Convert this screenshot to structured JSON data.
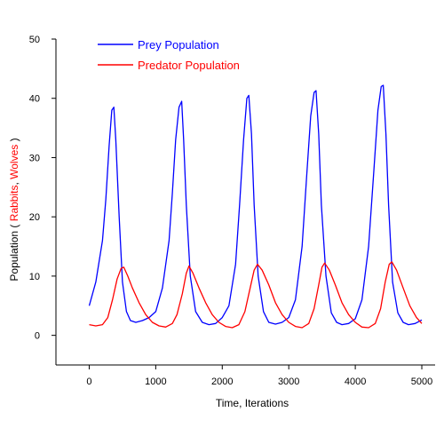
{
  "chart_data": {
    "type": "line",
    "title": "",
    "xlabel": "Time, Iterations",
    "ylabel_parts": [
      {
        "text": "Population ( ",
        "color": "#000000"
      },
      {
        "text": "Rabbits",
        "color": "#ff0000"
      },
      {
        "text": ", ",
        "color": "#000000"
      },
      {
        "text": "Wolves",
        "color": "#ff0000"
      },
      {
        "text": " )",
        "color": "#000000"
      }
    ],
    "xlim": [
      -500,
      5200
    ],
    "ylim": [
      -5,
      50
    ],
    "xticks": [
      0,
      1000,
      2000,
      3000,
      4000,
      5000
    ],
    "yticks": [
      0,
      10,
      20,
      30,
      40,
      50
    ],
    "grid": false,
    "legend_position": "top-left",
    "series": [
      {
        "name": "Prey Population",
        "color": "#0000ff",
        "x": [
          0,
          100,
          200,
          250,
          300,
          340,
          370,
          400,
          450,
          500,
          560,
          620,
          700,
          800,
          900,
          1000,
          1100,
          1200,
          1250,
          1300,
          1350,
          1390,
          1420,
          1460,
          1520,
          1600,
          1700,
          1800,
          1900,
          2000,
          2100,
          2200,
          2260,
          2320,
          2370,
          2400,
          2440,
          2480,
          2540,
          2620,
          2700,
          2800,
          2900,
          3000,
          3100,
          3200,
          3270,
          3330,
          3380,
          3410,
          3450,
          3490,
          3560,
          3640,
          3720,
          3800,
          3900,
          4000,
          4100,
          4200,
          4280,
          4340,
          4390,
          4420,
          4460,
          4500,
          4560,
          4640,
          4720,
          4800,
          4900,
          5000
        ],
        "values": [
          5,
          9,
          16,
          23,
          32,
          38,
          38.5,
          33,
          20,
          9,
          4,
          2.5,
          2.2,
          2.5,
          3,
          4,
          8,
          16,
          24,
          33,
          38.5,
          39.5,
          33,
          22,
          10,
          4,
          2.2,
          1.8,
          2,
          3,
          5,
          12,
          22,
          33,
          40,
          40.5,
          34,
          22,
          10,
          4,
          2.2,
          1.9,
          2.2,
          3,
          6,
          15,
          27,
          37,
          41,
          41.3,
          34,
          22,
          10,
          3.8,
          2.2,
          1.8,
          2,
          2.8,
          6,
          15,
          28,
          38,
          42,
          42.2,
          34,
          22,
          9,
          3.8,
          2.2,
          1.8,
          2,
          2.6
        ]
      },
      {
        "name": "Predator Population",
        "color": "#ff0000",
        "x": [
          0,
          100,
          200,
          280,
          350,
          420,
          480,
          520,
          580,
          650,
          750,
          850,
          950,
          1050,
          1150,
          1250,
          1320,
          1400,
          1460,
          1500,
          1560,
          1650,
          1750,
          1850,
          1950,
          2050,
          2150,
          2250,
          2340,
          2420,
          2480,
          2530,
          2600,
          2700,
          2800,
          2900,
          3000,
          3100,
          3200,
          3300,
          3380,
          3450,
          3500,
          3540,
          3610,
          3700,
          3800,
          3900,
          4000,
          4100,
          4200,
          4300,
          4380,
          4450,
          4510,
          4550,
          4620,
          4720,
          4820,
          4920,
          5000
        ],
        "values": [
          1.8,
          1.6,
          1.8,
          3,
          6,
          9.5,
          11.3,
          11.5,
          10,
          8,
          5.5,
          3.5,
          2.2,
          1.6,
          1.4,
          2,
          3.5,
          7,
          10.5,
          11.7,
          10.5,
          8,
          5.5,
          3.5,
          2.2,
          1.5,
          1.3,
          1.8,
          4,
          8,
          11,
          12,
          11,
          8.5,
          5.5,
          3.5,
          2.2,
          1.5,
          1.3,
          2,
          4.5,
          8.5,
          11.5,
          12.2,
          11,
          8.5,
          5.5,
          3.5,
          2.2,
          1.4,
          1.3,
          2,
          4.5,
          9,
          12,
          12.4,
          11,
          8,
          5,
          3,
          2
        ]
      }
    ]
  }
}
